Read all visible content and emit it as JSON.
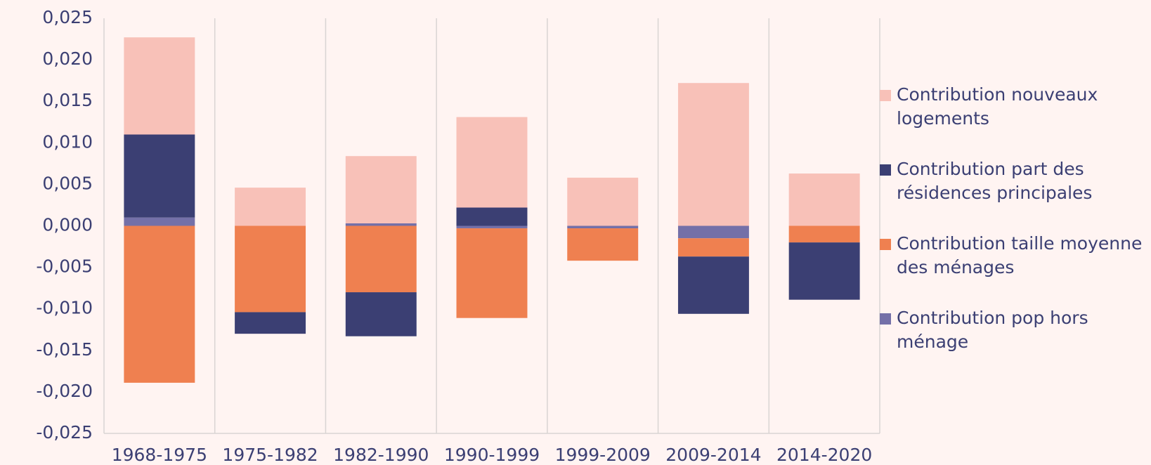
{
  "chart_data": {
    "type": "stacked-bar",
    "categories": [
      "1968-1975",
      "1975-1982",
      "1982-1990",
      "1990-1999",
      "1999-2009",
      "2009-2014",
      "2014-2020"
    ],
    "series": [
      {
        "name": "Contribution nouveaux logements",
        "color": "#f8c1b8",
        "values": [
          0.0117,
          0.0046,
          0.0081,
          0.0109,
          0.0058,
          0.0172,
          0.0063
        ]
      },
      {
        "name": "Contribution part des résidences principales",
        "color": "#3b3f73",
        "values": [
          0.01,
          -0.0026,
          -0.0053,
          0.0022,
          0,
          -0.0069,
          -0.0069
        ]
      },
      {
        "name": "Contribution taille moyenne des ménages",
        "color": "#ef8050",
        "values": [
          -0.0189,
          -0.0104,
          -0.008,
          -0.0108,
          -0.0039,
          -0.0022,
          -0.002
        ]
      },
      {
        "name": "Contribution pop hors ménage",
        "color": "#7470a8",
        "values": [
          0.001,
          0,
          0.0003,
          -0.0003,
          -0.0003,
          -0.0015,
          0
        ]
      }
    ],
    "ylim": [
      -0.025,
      0.025
    ],
    "yticks": [
      {
        "value": -0.025,
        "label": "-0,025"
      },
      {
        "value": -0.02,
        "label": "-0,020"
      },
      {
        "value": -0.015,
        "label": "-0,015"
      },
      {
        "value": -0.01,
        "label": "-0,010"
      },
      {
        "value": -0.005,
        "label": "-0,005"
      },
      {
        "value": 0,
        "label": "0,000"
      },
      {
        "value": 0.005,
        "label": "0,005"
      },
      {
        "value": 0.01,
        "label": "0,010"
      },
      {
        "value": 0.015,
        "label": "0,015"
      },
      {
        "value": 0.02,
        "label": "0,020"
      },
      {
        "value": 0.025,
        "label": "0,025"
      }
    ],
    "legend": "right"
  }
}
